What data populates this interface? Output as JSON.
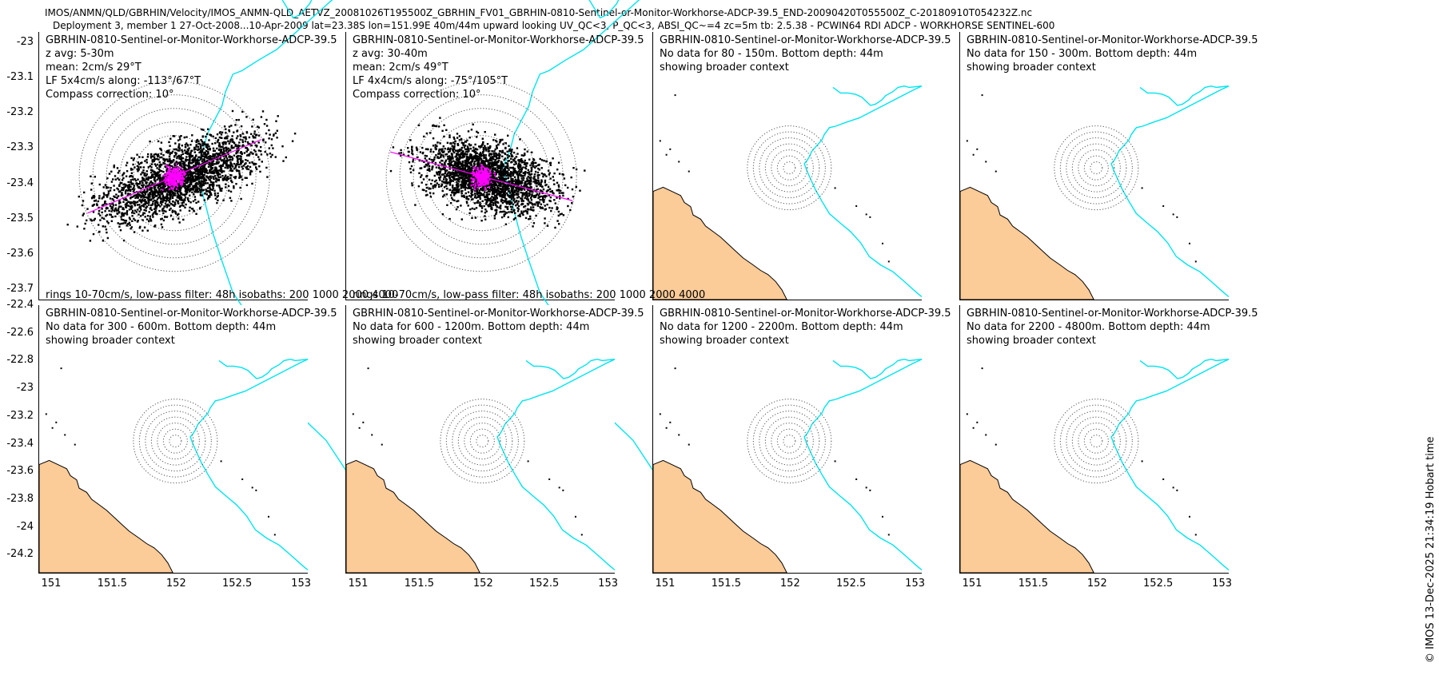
{
  "header": {
    "line1": "IMOS/ANMN/QLD/GBRHIN/Velocity/IMOS_ANMN-QLD_AETVZ_20081026T195500Z_GBRHIN_FV01_GBRHIN-0810-Sentinel-or-Monitor-Workhorse-ADCP-39.5_END-20090420T055500Z_C-20180910T054232Z.nc",
    "line2": "Deployment 3, member 1 27-Oct-2008...10-Apr-2009 lat=23.38S lon=151.99E 40m/44m upward looking UV_QC<3, P_QC<3, ABSI_QC~=4 zc=5m tb: 2.5.38 - PCWIN64 RDI ADCP - WORKHORSE SENTINEL-600"
  },
  "footer": "© IMOS 13-Dec-2025 21:34:19 Hobart time",
  "colors": {
    "land": "#fbcb98",
    "isobath": "#00e5ee",
    "lowpass": "#ff00ff",
    "points": "#000000"
  },
  "panels": [
    {
      "lines": [
        "GBRHIN-0810-Sentinel-or-Monitor-Workhorse-ADCP-39.5",
        "z avg: 5-30m",
        "mean: 2cm/s 29°T",
        "LF 5x4cm/s along: -113°/67°T",
        "Compass correction: 10°"
      ],
      "rings_label": "rings 10-70cm/s, low-pass filter: 48h isobaths: 200 1000 2000 4000"
    },
    {
      "lines": [
        "GBRHIN-0810-Sentinel-or-Monitor-Workhorse-ADCP-39.5",
        "z avg: 30-40m",
        "mean: 2cm/s 49°T",
        "LF 4x4cm/s along: -75°/105°T",
        "Compass correction: 10°"
      ],
      "rings_label": "rings 10-70cm/s, low-pass filter: 48h isobaths: 200 1000 2000 4000"
    },
    {
      "lines": [
        "GBRHIN-0810-Sentinel-or-Monitor-Workhorse-ADCP-39.5",
        "No data for 80 - 150m. Bottom depth: 44m",
        "showing broader context"
      ]
    },
    {
      "lines": [
        "GBRHIN-0810-Sentinel-or-Monitor-Workhorse-ADCP-39.5",
        "No data for 150 - 300m. Bottom depth: 44m",
        "showing broader context"
      ]
    },
    {
      "lines": [
        "GBRHIN-0810-Sentinel-or-Monitor-Workhorse-ADCP-39.5",
        "No data for 300 - 600m. Bottom depth: 44m",
        "showing broader context"
      ]
    },
    {
      "lines": [
        "GBRHIN-0810-Sentinel-or-Monitor-Workhorse-ADCP-39.5",
        "No data for 600 - 1200m. Bottom depth: 44m",
        "showing broader context"
      ]
    },
    {
      "lines": [
        "GBRHIN-0810-Sentinel-or-Monitor-Workhorse-ADCP-39.5",
        "No data for 1200 - 2200m. Bottom depth: 44m",
        "showing broader context"
      ]
    },
    {
      "lines": [
        "GBRHIN-0810-Sentinel-or-Monitor-Workhorse-ADCP-39.5",
        "No data for 2200 - 4800m. Bottom depth: 44m",
        "showing broader context"
      ]
    }
  ],
  "chart_data": {
    "type": "scatter",
    "title": "GBRHIN-0810-Sentinel-or-Monitor-Workhorse-ADCP-39.5",
    "xlabel": "",
    "ylabel": "",
    "mooring": {
      "lon": 151.99,
      "lat": -23.38
    },
    "ring_speeds_cm_s": [
      10,
      20,
      30,
      40,
      50,
      60,
      70
    ],
    "row1_ylim": [
      -23.73,
      -22.97
    ],
    "row1_yticks": [
      "-23",
      "-23.1",
      "-23.2",
      "-23.3",
      "-23.4",
      "-23.5",
      "-23.6",
      "-23.7"
    ],
    "row2_ylim": [
      -24.33,
      -22.4
    ],
    "row2_yticks": [
      "-22.4",
      "-22.6",
      "-22.8",
      "-23",
      "-23.2",
      "-23.4",
      "-23.6",
      "-23.8",
      "-24",
      "-24.2"
    ],
    "xlim": [
      150.9,
      153.05
    ],
    "xticks": [
      "151",
      "151.5",
      "152",
      "152.5",
      "153"
    ],
    "zoom_xlim": [
      151.25,
      152.72
    ],
    "isobath_lonlat": [
      [
        152.34,
        -22.8
      ],
      [
        152.4,
        -22.84
      ],
      [
        152.46,
        -22.84
      ],
      [
        152.52,
        -22.85
      ],
      [
        152.57,
        -22.87
      ],
      [
        152.64,
        -22.93
      ],
      [
        152.68,
        -22.92
      ],
      [
        152.73,
        -22.89
      ],
      [
        152.76,
        -22.86
      ],
      [
        152.82,
        -22.83
      ],
      [
        152.86,
        -22.8
      ],
      [
        152.91,
        -22.79
      ],
      [
        152.95,
        -22.8
      ],
      [
        153.05,
        -22.79
      ],
      [
        152.98,
        -22.82
      ],
      [
        152.55,
        -23.02
      ],
      [
        152.45,
        -23.05
      ],
      [
        152.36,
        -23.08
      ],
      [
        152.31,
        -23.09
      ],
      [
        152.27,
        -23.14
      ],
      [
        152.25,
        -23.18
      ],
      [
        152.21,
        -23.22
      ],
      [
        152.17,
        -23.26
      ],
      [
        152.15,
        -23.3
      ],
      [
        152.13,
        -23.33
      ],
      [
        152.11,
        -23.35
      ],
      [
        152.13,
        -23.4
      ],
      [
        152.16,
        -23.46
      ],
      [
        152.2,
        -23.54
      ],
      [
        152.25,
        -23.62
      ],
      [
        152.31,
        -23.71
      ],
      [
        152.4,
        -23.78
      ],
      [
        152.48,
        -23.84
      ],
      [
        152.56,
        -23.92
      ],
      [
        152.63,
        -24.02
      ],
      [
        152.72,
        -24.08
      ],
      [
        152.82,
        -24.13
      ],
      [
        152.91,
        -24.2
      ],
      [
        153.01,
        -24.28
      ],
      [
        153.05,
        -24.31
      ]
    ],
    "coast_lonlat": [
      [
        150.9,
        -23.55
      ],
      [
        150.98,
        -23.52
      ],
      [
        151.05,
        -23.55
      ],
      [
        151.12,
        -23.58
      ],
      [
        151.15,
        -23.63
      ],
      [
        151.2,
        -23.66
      ],
      [
        151.22,
        -23.72
      ],
      [
        151.28,
        -23.75
      ],
      [
        151.32,
        -23.8
      ],
      [
        151.38,
        -23.84
      ],
      [
        151.44,
        -23.88
      ],
      [
        151.5,
        -23.93
      ],
      [
        151.56,
        -23.98
      ],
      [
        151.62,
        -24.03
      ],
      [
        151.7,
        -24.08
      ],
      [
        151.76,
        -24.12
      ],
      [
        151.82,
        -24.15
      ],
      [
        151.88,
        -24.2
      ],
      [
        151.93,
        -24.26
      ],
      [
        151.97,
        -24.33
      ],
      [
        150.9,
        -24.33
      ]
    ],
    "series": [
      {
        "name": "depth 5-30m scatter",
        "n_points": 9000,
        "mean_speed_cm_s": 2,
        "mean_dir_deg_T": 29,
        "lf_major_cm_s": 5,
        "lf_minor_cm_s": 4,
        "axis_deg": [
          -113,
          67
        ]
      },
      {
        "name": "depth 30-40m scatter",
        "n_points": 9000,
        "mean_speed_cm_s": 2,
        "mean_dir_deg_T": 49,
        "lf_major_cm_s": 4,
        "lf_minor_cm_s": 4,
        "axis_deg": [
          -75,
          105
        ]
      }
    ]
  }
}
